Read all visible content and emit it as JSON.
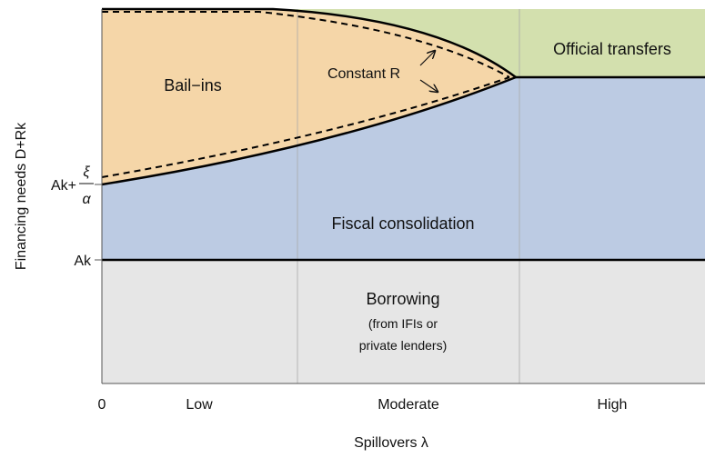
{
  "axes": {
    "y_label": "Financing needs  D+Rk",
    "x_label": "Spillovers λ",
    "x_labels": [
      "0",
      "Low",
      "Moderate",
      "High"
    ],
    "y_labels": {
      "ak_plus": "Ak+",
      "xi": "ξ",
      "alpha": "α",
      "ak": "Ak"
    }
  },
  "regions": {
    "bail_ins": "Bail−ins",
    "constant_r": "Constant R",
    "official_transfers": "Official transfers",
    "fiscal_consolidation": "Fiscal consolidation",
    "borrowing": "Borrowing",
    "borrowing_note_1": "(from IFIs or",
    "borrowing_note_2": "private lenders)"
  }
}
